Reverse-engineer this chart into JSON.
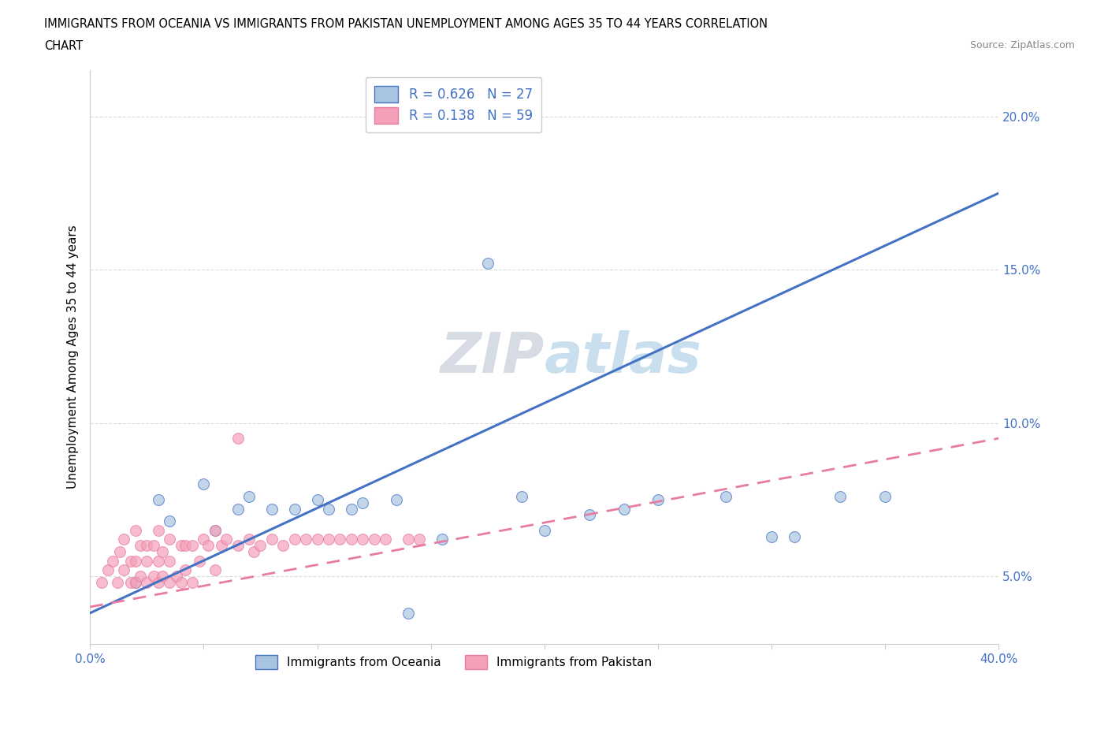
{
  "title_line1": "IMMIGRANTS FROM OCEANIA VS IMMIGRANTS FROM PAKISTAN UNEMPLOYMENT AMONG AGES 35 TO 44 YEARS CORRELATION",
  "title_line2": "CHART",
  "source": "Source: ZipAtlas.com",
  "ylabel": "Unemployment Among Ages 35 to 44 years",
  "xmin": 0.0,
  "xmax": 0.4,
  "ymin": 0.028,
  "ymax": 0.215,
  "oceania_color": "#a8c4e0",
  "pakistan_color": "#f4a0b8",
  "oceania_line_color": "#4472c4",
  "pakistan_line_color": "#e87ca0",
  "watermark_color": "#c8d8e8",
  "tick_label_color": "#4472c4",
  "oceania_x": [
    0.02,
    0.03,
    0.035,
    0.05,
    0.055,
    0.065,
    0.07,
    0.08,
    0.09,
    0.1,
    0.105,
    0.115,
    0.12,
    0.135,
    0.14,
    0.155,
    0.175,
    0.19,
    0.2,
    0.22,
    0.235,
    0.25,
    0.28,
    0.3,
    0.31,
    0.33,
    0.35
  ],
  "oceania_y": [
    0.048,
    0.075,
    0.068,
    0.08,
    0.065,
    0.072,
    0.076,
    0.072,
    0.072,
    0.075,
    0.072,
    0.072,
    0.074,
    0.075,
    0.038,
    0.062,
    0.152,
    0.076,
    0.065,
    0.07,
    0.072,
    0.075,
    0.076,
    0.063,
    0.063,
    0.076,
    0.076
  ],
  "pakistan_x": [
    0.005,
    0.008,
    0.01,
    0.012,
    0.013,
    0.015,
    0.015,
    0.018,
    0.018,
    0.02,
    0.02,
    0.02,
    0.022,
    0.022,
    0.025,
    0.025,
    0.025,
    0.028,
    0.028,
    0.03,
    0.03,
    0.03,
    0.032,
    0.032,
    0.035,
    0.035,
    0.035,
    0.038,
    0.04,
    0.04,
    0.042,
    0.042,
    0.045,
    0.045,
    0.048,
    0.05,
    0.052,
    0.055,
    0.055,
    0.058,
    0.06,
    0.065,
    0.065,
    0.07,
    0.072,
    0.075,
    0.08,
    0.085,
    0.09,
    0.095,
    0.1,
    0.105,
    0.11,
    0.115,
    0.12,
    0.125,
    0.13,
    0.14,
    0.145
  ],
  "pakistan_y": [
    0.048,
    0.052,
    0.055,
    0.048,
    0.058,
    0.052,
    0.062,
    0.048,
    0.055,
    0.048,
    0.055,
    0.065,
    0.05,
    0.06,
    0.048,
    0.055,
    0.06,
    0.05,
    0.06,
    0.048,
    0.055,
    0.065,
    0.05,
    0.058,
    0.048,
    0.055,
    0.062,
    0.05,
    0.048,
    0.06,
    0.052,
    0.06,
    0.048,
    0.06,
    0.055,
    0.062,
    0.06,
    0.052,
    0.065,
    0.06,
    0.062,
    0.06,
    0.095,
    0.062,
    0.058,
    0.06,
    0.062,
    0.06,
    0.062,
    0.062,
    0.062,
    0.062,
    0.062,
    0.062,
    0.062,
    0.062,
    0.062,
    0.062,
    0.062
  ],
  "oceania_line_x0": 0.0,
  "oceania_line_y0": 0.038,
  "oceania_line_x1": 0.4,
  "oceania_line_y1": 0.175,
  "pak_line_x0": 0.0,
  "pak_line_y0": 0.04,
  "pak_line_x1": 0.4,
  "pak_line_y1": 0.095
}
